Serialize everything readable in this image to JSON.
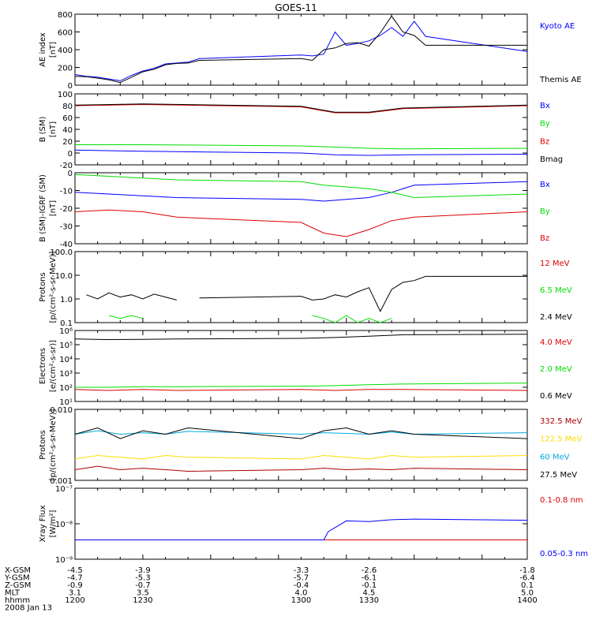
{
  "title": "GOES-11",
  "chart_data": [
    {
      "type": "line",
      "panel": 1,
      "ylabel": "AE index",
      "yunit": "[nT]",
      "yscale": "linear",
      "ylim": [
        0,
        800
      ],
      "yticks": [
        "0",
        "200",
        "400",
        "600",
        "800"
      ],
      "x": [
        1200,
        1205,
        1210,
        1215,
        1220,
        1225,
        1230,
        1235,
        1240,
        1245,
        1250,
        1255,
        1300,
        1305,
        1310,
        1315,
        1320,
        1325,
        1330,
        1335,
        1340,
        1345,
        1350,
        1355,
        1400
      ],
      "series": [
        {
          "name": "Kyoto AE",
          "color": "#0000ff",
          "values": [
            120,
            100,
            90,
            70,
            50,
            110,
            160,
            190,
            240,
            250,
            260,
            300,
            340,
            330,
            350,
            600,
            450,
            470,
            500,
            560,
            650,
            550,
            720,
            550,
            380
          ]
        },
        {
          "name": "Themis AE",
          "color": "#000000",
          "values": [
            100,
            95,
            80,
            60,
            30,
            90,
            150,
            180,
            230,
            245,
            250,
            280,
            300,
            280,
            400,
            420,
            470,
            480,
            440,
            590,
            780,
            600,
            560,
            450,
            450
          ]
        }
      ]
    },
    {
      "type": "line",
      "panel": 2,
      "ylabel": "B (SM)",
      "yunit": "[nT]",
      "yscale": "linear",
      "ylim": [
        -20,
        100
      ],
      "yticks": [
        "-20",
        "0",
        "20",
        "40",
        "60",
        "80",
        "100"
      ],
      "x": [
        1200,
        1230,
        1300,
        1315,
        1330,
        1345,
        1400
      ],
      "series": [
        {
          "name": "Bx",
          "color": "#0000ff",
          "values": [
            5,
            3,
            0,
            -3,
            -4,
            -3,
            -2
          ]
        },
        {
          "name": "By",
          "color": "#00dd00",
          "values": [
            14,
            14,
            12,
            10,
            8,
            7,
            8
          ]
        },
        {
          "name": "Bz",
          "color": "#dd0000",
          "values": [
            80,
            82,
            78,
            68,
            68,
            75,
            80
          ]
        },
        {
          "name": "Bmag",
          "color": "#000000",
          "values": [
            81,
            83,
            79,
            69,
            69,
            76,
            81
          ]
        }
      ]
    },
    {
      "type": "line",
      "panel": 3,
      "ylabel": "B (SM)-IGRF (SM)",
      "yunit": "[nT]",
      "yscale": "linear",
      "ylim": [
        -40,
        0
      ],
      "yticks": [
        "-40",
        "-30",
        "-20",
        "-10",
        "0"
      ],
      "x": [
        1200,
        1215,
        1230,
        1245,
        1300,
        1310,
        1320,
        1330,
        1340,
        1350,
        1400
      ],
      "series": [
        {
          "name": "Bx",
          "color": "#0000ff",
          "values": [
            -11,
            -12,
            -13,
            -14,
            -15,
            -16,
            -15,
            -14,
            -11,
            -7,
            -5
          ]
        },
        {
          "name": "By",
          "color": "#00dd00",
          "values": [
            -1,
            -2,
            -3,
            -4,
            -5,
            -7,
            -8,
            -9,
            -11,
            -14,
            -12
          ]
        },
        {
          "name": "Bz",
          "color": "#dd0000",
          "values": [
            -22,
            -21,
            -22,
            -25,
            -28,
            -34,
            -36,
            -32,
            -27,
            -25,
            -22
          ]
        }
      ]
    },
    {
      "type": "line",
      "panel": 4,
      "ylabel": "Protons",
      "yunit": "[p/(cm²-s-sr-MeV)]",
      "yscale": "log",
      "ylim": [
        0.1,
        100
      ],
      "yticks": [
        "0.1",
        "1.0",
        "10.0",
        "100.0"
      ],
      "x": [
        1205,
        1210,
        1215,
        1220,
        1225,
        1230,
        1235,
        1240,
        1245,
        1250,
        1255,
        1300,
        1305,
        1310,
        1315,
        1320,
        1325,
        1330,
        1335,
        1340,
        1345,
        1350,
        1355,
        1400
      ],
      "series": [
        {
          "name": "12 MeV",
          "color": "#dd0000",
          "values": [
            null,
            0.1,
            null,
            null,
            null,
            null,
            null,
            null,
            null,
            null,
            0.1,
            null,
            null,
            null,
            null,
            null,
            null,
            null,
            null,
            null,
            null,
            null,
            null,
            0.1
          ]
        },
        {
          "name": "6.5 MeV",
          "color": "#00dd00",
          "values": [
            null,
            null,
            0.2,
            0.15,
            0.2,
            0.15,
            null,
            null,
            null,
            0.2,
            null,
            null,
            0.2,
            0.15,
            0.1,
            0.2,
            0.1,
            0.15,
            0.1,
            0.15,
            null,
            null,
            0.12,
            null
          ]
        },
        {
          "name": "2.4 MeV",
          "color": "#000000",
          "values": [
            1.5,
            1.0,
            1.8,
            1.2,
            1.5,
            1.0,
            1.6,
            1.2,
            0.9,
            null,
            1.1,
            1.3,
            0.9,
            1.0,
            1.5,
            1.2,
            2.0,
            3.0,
            0.3,
            2.5,
            5.0,
            6.0,
            9.0,
            9.0
          ]
        }
      ]
    },
    {
      "type": "line",
      "panel": 5,
      "ylabel": "Electrons",
      "yunit": "[e/(cm²-s-sr)]",
      "yscale": "log",
      "ylim": [
        10,
        1000000
      ],
      "yticks": [
        "10¹",
        "10²",
        "10³",
        "10⁴",
        "10⁵",
        "10⁶"
      ],
      "x": [
        1200,
        1215,
        1230,
        1245,
        1300,
        1315,
        1330,
        1345,
        1400
      ],
      "series": [
        {
          "name": "4.0 MeV",
          "color": "#dd0000",
          "values": [
            70,
            60,
            70,
            60,
            70,
            60,
            70,
            70,
            60
          ]
        },
        {
          "name": "2.0 MeV",
          "color": "#00dd00",
          "values": [
            100,
            100,
            110,
            110,
            120,
            130,
            150,
            170,
            200
          ]
        },
        {
          "name": "0.6 MeV",
          "color": "#000000",
          "values": [
            250000,
            230000,
            240000,
            250000,
            280000,
            320000,
            400000,
            500000,
            550000
          ]
        }
      ]
    },
    {
      "type": "line",
      "panel": 6,
      "ylabel": "Protons",
      "yunit": "[p/(cm²-s-sr-MeV)]",
      "yscale": "log",
      "ylim": [
        0.001,
        0.1
      ],
      "yticks": [
        "0.001",
        "0.010"
      ],
      "x": [
        1200,
        1210,
        1220,
        1230,
        1240,
        1250,
        1300,
        1310,
        1320,
        1330,
        1340,
        1350,
        1400
      ],
      "series": [
        {
          "name": "332.5 MeV",
          "color": "#aa0000",
          "values": [
            0.002,
            0.0025,
            0.002,
            0.0022,
            0.002,
            0.0018,
            0.002,
            0.0022,
            0.002,
            0.0021,
            0.002,
            0.0022,
            0.002
          ]
        },
        {
          "name": "122.5 MeV",
          "color": "#ffdd00",
          "values": [
            0.004,
            0.005,
            0.0045,
            0.004,
            0.005,
            0.0045,
            0.004,
            0.005,
            0.0045,
            0.004,
            0.005,
            0.0045,
            0.005
          ]
        },
        {
          "name": "60 MeV",
          "color": "#00aadd",
          "values": [
            0.02,
            0.025,
            0.02,
            0.022,
            0.02,
            0.024,
            0.02,
            0.022,
            0.021,
            0.02,
            0.023,
            0.02,
            0.022
          ]
        },
        {
          "name": "27.5 MeV",
          "color": "#000000",
          "values": [
            0.02,
            0.03,
            0.015,
            0.025,
            0.02,
            0.03,
            0.015,
            0.025,
            0.03,
            0.02,
            0.025,
            0.02,
            0.015
          ]
        }
      ]
    },
    {
      "type": "line",
      "panel": 7,
      "ylabel": "Xray Flux",
      "yunit": "[W/m²]",
      "yscale": "log",
      "ylim": [
        1e-09,
        1e-07
      ],
      "yticks": [
        "10⁻⁹",
        "10⁻⁸",
        "10⁻⁷"
      ],
      "x": [
        1200,
        1230,
        1310,
        1312,
        1320,
        1330,
        1340,
        1350,
        1400
      ],
      "series": [
        {
          "name": "0.1-0.8 nm",
          "color": "#dd0000",
          "values": [
            3.5e-09,
            3.5e-09,
            3.5e-09,
            3.5e-09,
            3.5e-09,
            3.5e-09,
            3.5e-09,
            3.5e-09,
            3.5e-09
          ]
        },
        {
          "name": "0.05-0.3 nm",
          "color": "#0000ff",
          "values": [
            3.5e-09,
            3.5e-09,
            3.5e-09,
            6e-09,
            1.2e-08,
            1.15e-08,
            1.3e-08,
            1.35e-08,
            1.25e-08
          ]
        }
      ]
    }
  ],
  "x_axis": {
    "rows": [
      {
        "label": "X-GSM",
        "values": [
          "-4.5",
          "-3.9",
          "-3.3",
          "-2.6",
          "-1.8"
        ]
      },
      {
        "label": "Y-GSM",
        "values": [
          "-4.7",
          "-5.3",
          "-5.7",
          "-6.1",
          "-6.4"
        ]
      },
      {
        "label": "Z-GSM",
        "values": [
          "-0.9",
          "-0.7",
          "-0.4",
          "-0.1",
          "0.1"
        ]
      },
      {
        "label": "MLT",
        "values": [
          "3.1",
          "3.5",
          "4.0",
          "4.5",
          "5.0"
        ]
      },
      {
        "label": "hhmm",
        "values": [
          "1200",
          "1230",
          "1300",
          "1330",
          "1400"
        ]
      }
    ],
    "date": "2008 Jan 13"
  }
}
